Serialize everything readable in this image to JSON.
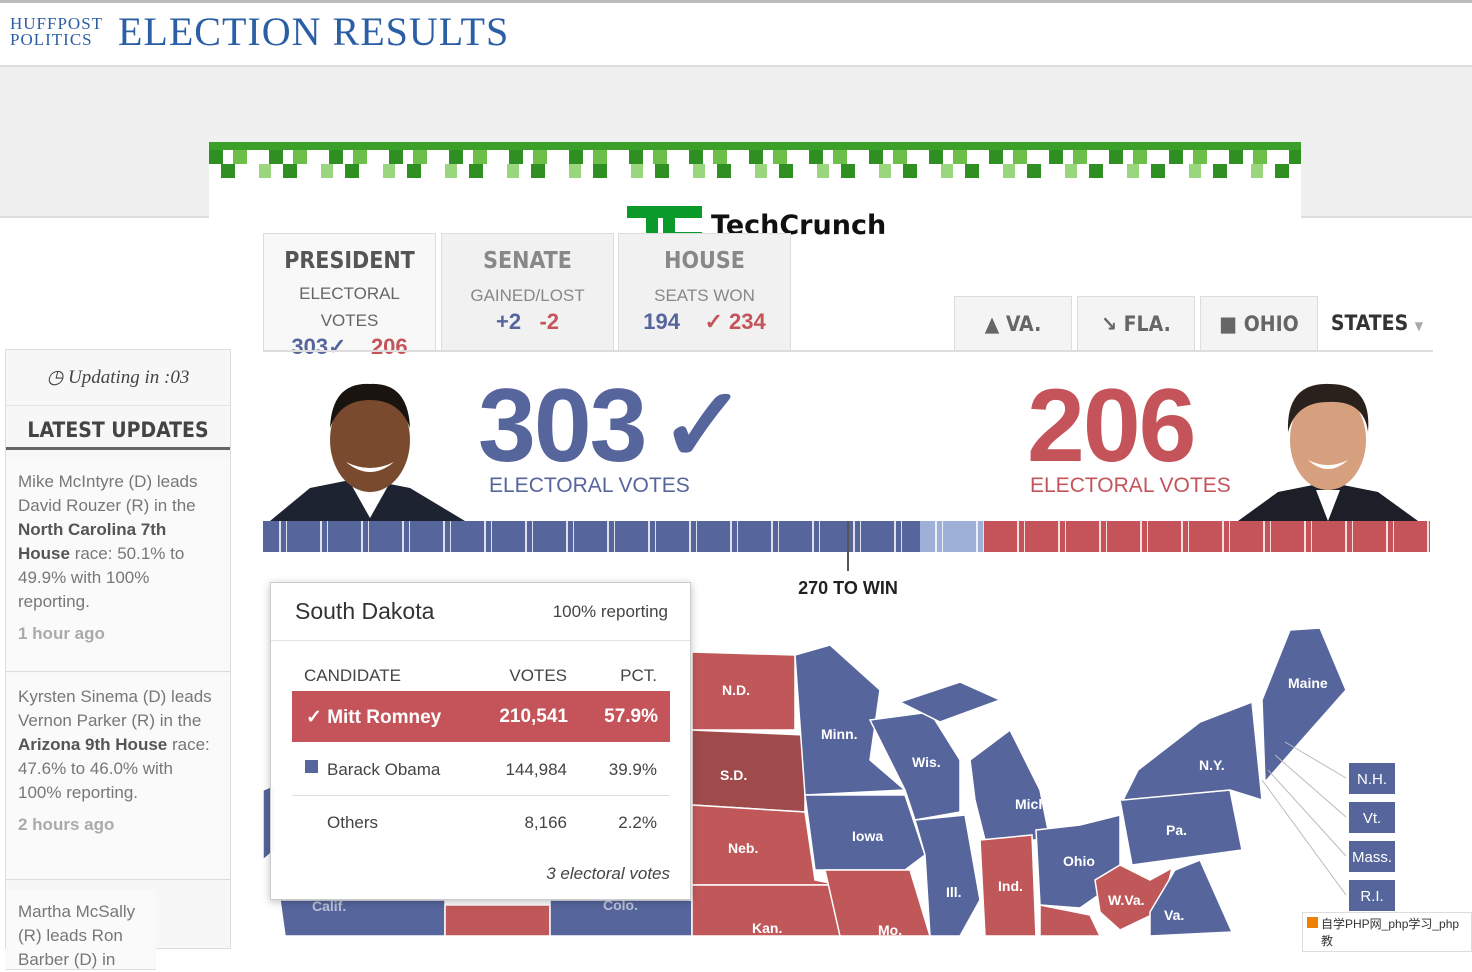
{
  "header": {
    "brand_top": "HUFFPOST",
    "brand_bottom": "POLITICS",
    "title": "ELECTION RESULTS"
  },
  "ad": {
    "logo": "TechCrunch"
  },
  "tabs": {
    "president": {
      "title": "PRESIDENT",
      "subtitle_1": "ELECTORAL",
      "subtitle_2": "VOTES",
      "dem": "303✓",
      "rep": "206"
    },
    "senate": {
      "title": "SENATE",
      "subtitle": "GAINED/LOST",
      "dem": "+2",
      "rep": "-2"
    },
    "house": {
      "title": "HOUSE",
      "subtitle": "SEATS WON",
      "dem": "194",
      "rep": "✓ 234"
    }
  },
  "state_tabs": [
    "VA.",
    "FLA.",
    "OHIO",
    "STATES"
  ],
  "sidebar": {
    "timer": "Updating in :03",
    "heading": "LATEST UPDATES",
    "updates": [
      {
        "before": "Mike McIntyre (D) leads David Rouzer (R) in the ",
        "bold": "North Carolina 7th House",
        "after": " race: 50.1% to 49.9% with 100% reporting.",
        "time": "1 hour ago"
      },
      {
        "before": "Kyrsten Sinema (D) leads Vernon Parker (R) in the ",
        "bold": "Arizona 9th House",
        "after": " race: 47.6% to 46.0% with 100% reporting.",
        "time": "2 hours ago"
      },
      {
        "before": "Martha McSally (R) leads Ron Barber (D) in",
        "bold": "",
        "after": "",
        "time": ""
      }
    ]
  },
  "results": {
    "dem": {
      "votes": 303,
      "mark": "✓",
      "label": "ELECTORAL VOTES",
      "color": "#56659c"
    },
    "rep": {
      "votes": 206,
      "label": "ELECTORAL VOTES",
      "color": "#c4545a"
    },
    "undecided_color": "#9fb0d8",
    "to_win": "270 TO WIN",
    "bar_xlim": [
      0,
      538
    ]
  },
  "popup": {
    "state": "South Dakota",
    "reporting": "100% reporting",
    "columns": [
      "CANDIDATE",
      "VOTES",
      "PCT."
    ],
    "rows": [
      [
        "✓ Mitt Romney",
        "210,541",
        "57.9%"
      ],
      [
        "Barack Obama",
        "144,984",
        "39.9%"
      ],
      [
        "Others",
        "8,166",
        "2.2%"
      ]
    ],
    "footer": "3 electoral votes"
  },
  "map": {
    "labels": [
      "N.D.",
      "S.D.",
      "Neb.",
      "Kan.",
      "Minn.",
      "Iowa",
      "Wis.",
      "Mich.",
      "Ill.",
      "Ind.",
      "Ohio",
      "Pa.",
      "N.Y.",
      "W.Va.",
      "Va.",
      "Maine",
      "Mo.",
      "Calif.",
      "Colo."
    ],
    "small_states": [
      "N.H.",
      "Vt.",
      "Mass.",
      "R.I."
    ]
  },
  "watermark": "自学PHP网_php学习_php教"
}
